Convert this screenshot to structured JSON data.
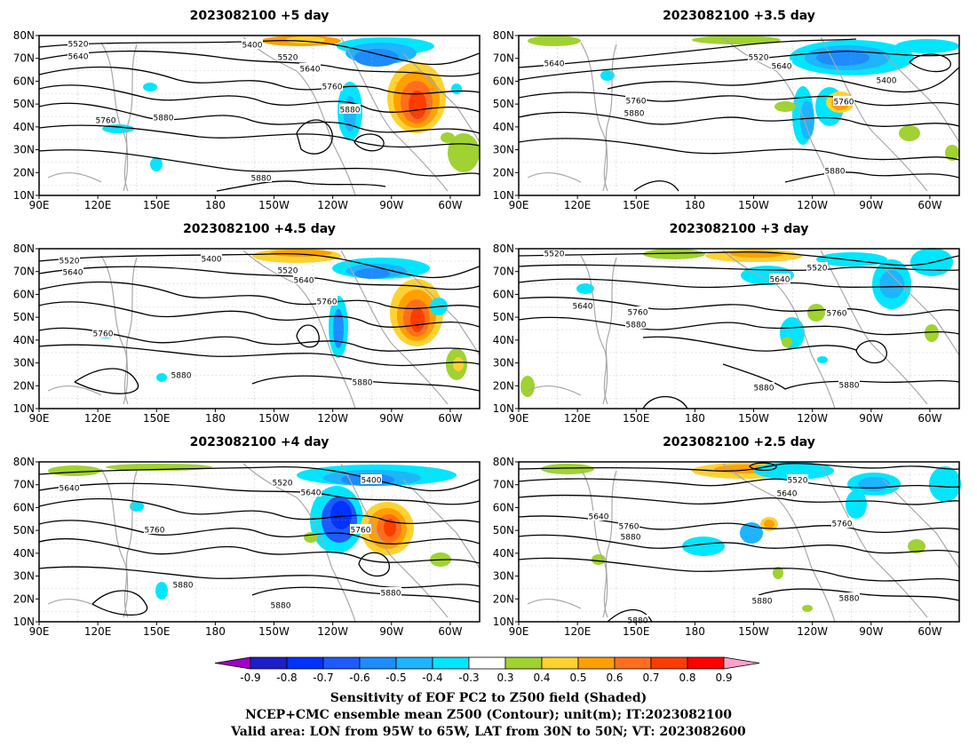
{
  "panels": [
    {
      "title": "2023082100 +5 day",
      "contour_labels": [
        "5520",
        "5640",
        "5400",
        "5520",
        "5640",
        "5760",
        "5880",
        "5760",
        "5880",
        "5880"
      ]
    },
    {
      "title": "2023082100 +3.5 day",
      "contour_labels": [
        "5640",
        "5520",
        "5640",
        "5400",
        "5760",
        "5880",
        "5760",
        "5880"
      ]
    },
    {
      "title": "2023082100 +4.5 day",
      "contour_labels": [
        "5520",
        "5640",
        "5400",
        "5520",
        "5640",
        "5760",
        "5760",
        "5880",
        "5880"
      ]
    },
    {
      "title": "2023082100 +3 day",
      "contour_labels": [
        "5520",
        "5520",
        "5640",
        "5640",
        "5760",
        "5880",
        "5760",
        "5880",
        "5880"
      ]
    },
    {
      "title": "2023082100 +4 day",
      "contour_labels": [
        "5640",
        "5520",
        "5400",
        "5640",
        "5760",
        "5760",
        "5880",
        "5880",
        "5880"
      ]
    },
    {
      "title": "2023082100 +2.5 day",
      "contour_labels": [
        "5520",
        "5640",
        "5640",
        "5760",
        "5880",
        "5760",
        "5880",
        "5880",
        "5880"
      ]
    }
  ],
  "axes": {
    "lat_ticks": [
      "80N",
      "70N",
      "60N",
      "50N",
      "40N",
      "30N",
      "20N",
      "10N"
    ],
    "lon_ticks": [
      "90E",
      "120E",
      "150E",
      "180",
      "150W",
      "120W",
      "90W",
      "60W"
    ]
  },
  "colorbar": {
    "labels": [
      "-0.9",
      "-0.8",
      "-0.7",
      "-0.6",
      "-0.5",
      "-0.4",
      "-0.3",
      "0.3",
      "0.4",
      "0.5",
      "0.6",
      "0.7",
      "0.8",
      "0.9"
    ],
    "colors": [
      "#a000c8",
      "#1e1ec8",
      "#0032ff",
      "#1e5aff",
      "#1e8cff",
      "#1eb4ff",
      "#00e6ff",
      "#ffffff",
      "#a0d232",
      "#ffd232",
      "#ffa000",
      "#ff6e1e",
      "#ff3c00",
      "#ff0000",
      "#ffa0c8"
    ]
  },
  "caption": {
    "line1": "Sensitivity of EOF PC2 to Z500 field (Shaded)",
    "line2": "NCEP+CMC ensemble mean Z500 (Contour); unit(m); IT:2023082100",
    "line3": "Valid area: LON from 95W to 65W, LAT from 30N to 50N; VT: 2023082600"
  }
}
